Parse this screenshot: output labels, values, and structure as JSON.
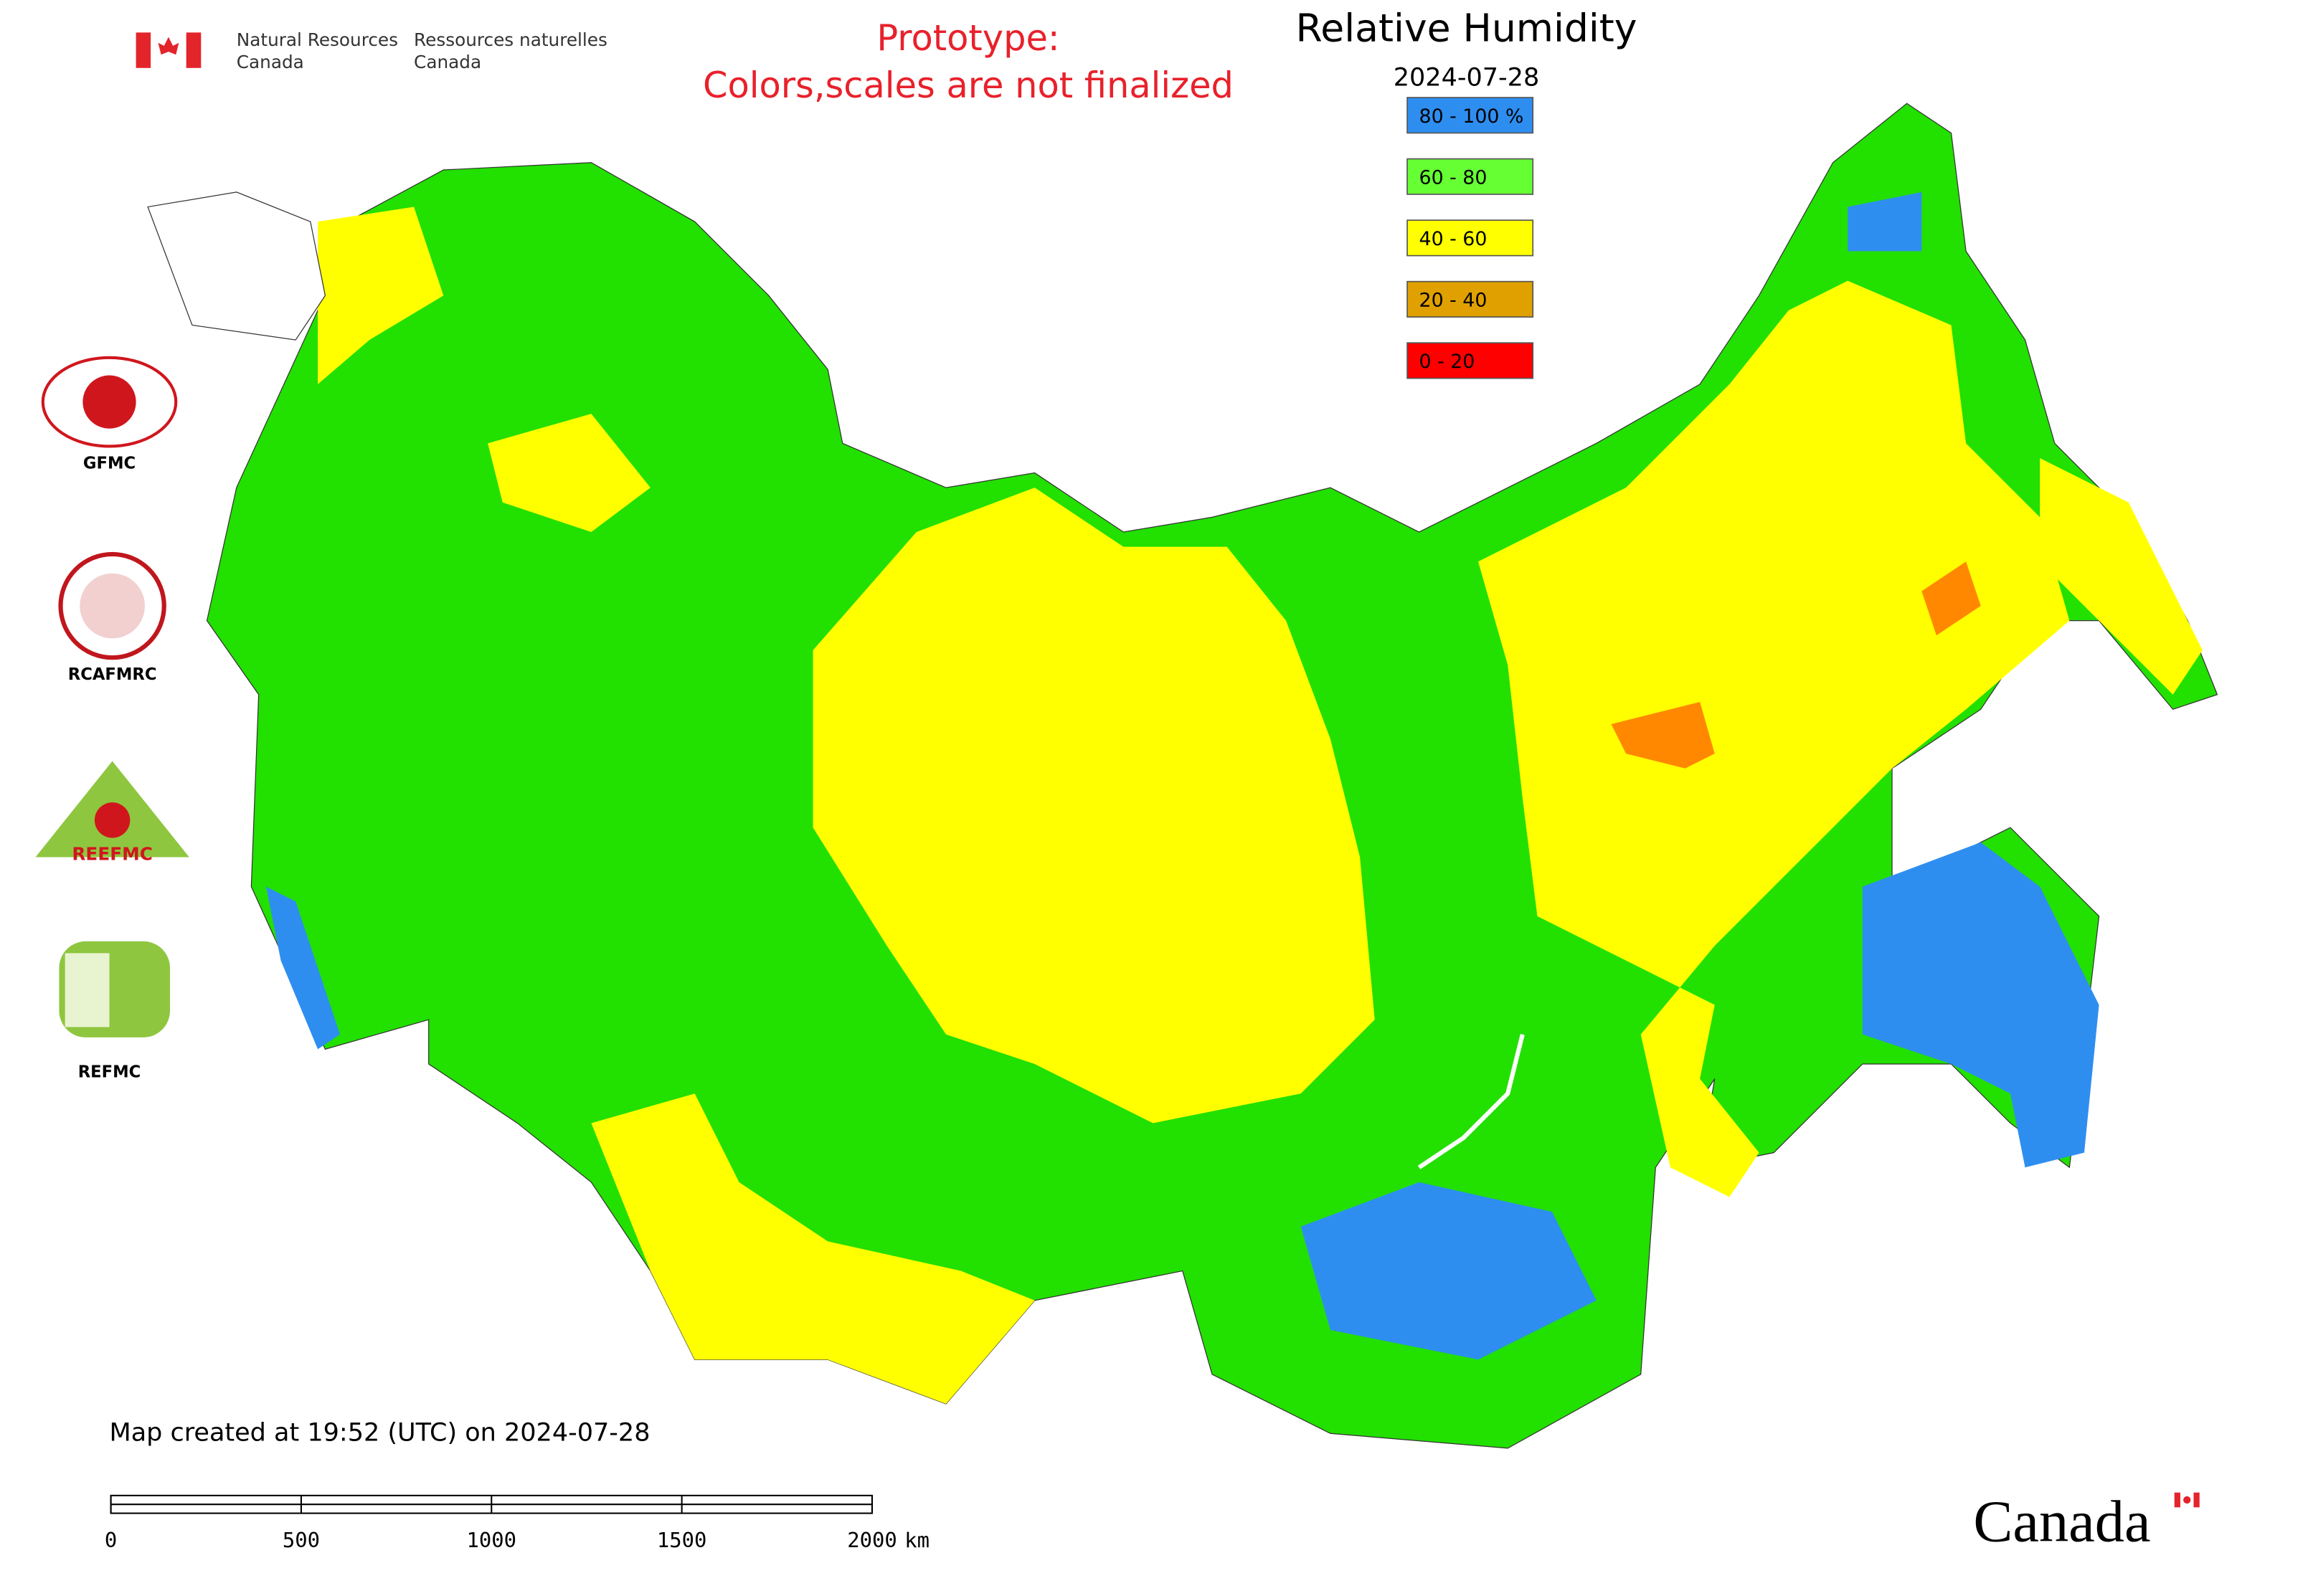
{
  "header": {
    "agency_en": [
      "Natural Resources",
      "Canada"
    ],
    "agency_fr": [
      "Ressources naturelles",
      "Canada"
    ]
  },
  "prototype_note": [
    "Prototype:",
    "Colors,scales are not finalized"
  ],
  "map": {
    "title": "Relative Humidity",
    "date": "2024-07-28",
    "legend": [
      {
        "label": "80 - 100 %",
        "color": "#2e8ef0"
      },
      {
        "label": "60 - 80",
        "color": "#66ff33"
      },
      {
        "label": "40 - 60",
        "color": "#ffff00"
      },
      {
        "label": "20 - 40",
        "color": "#e0a000"
      },
      {
        "label": "0 - 20",
        "color": "#ff0000"
      }
    ]
  },
  "side_logos": {
    "gfmc": "GFMC",
    "rcafmrc": "RCAFMRC",
    "reefmc": "REEFMC",
    "refmc": "REFMC"
  },
  "footer": {
    "created": "Map created at 19:52 (UTC) on 2024-07-28",
    "wordmark": "Canada"
  },
  "scale_bar": {
    "ticks": [
      0,
      500,
      1000,
      1500,
      2000
    ],
    "unit": "km"
  }
}
